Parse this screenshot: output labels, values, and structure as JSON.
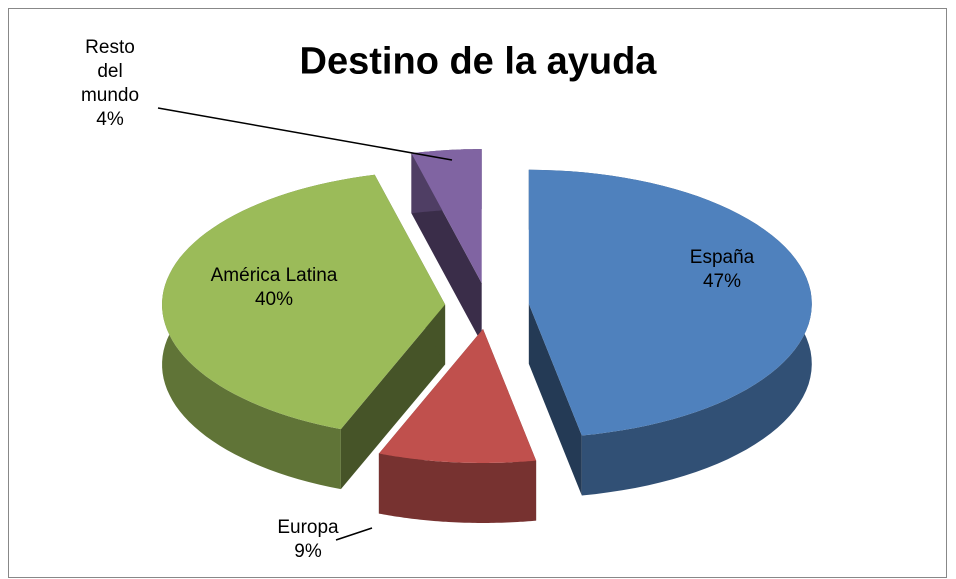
{
  "chart_data": {
    "type": "pie",
    "title": "Destino de la ayuda",
    "categories": [
      "España",
      "Europa",
      "América Latina",
      "Resto del mundo"
    ],
    "values": [
      47,
      9,
      40,
      4
    ],
    "value_labels": [
      "47%",
      "9%",
      "40%",
      "4%"
    ],
    "colors": [
      "#4f81bd",
      "#c0504d",
      "#9bbb59",
      "#8064a2"
    ]
  }
}
